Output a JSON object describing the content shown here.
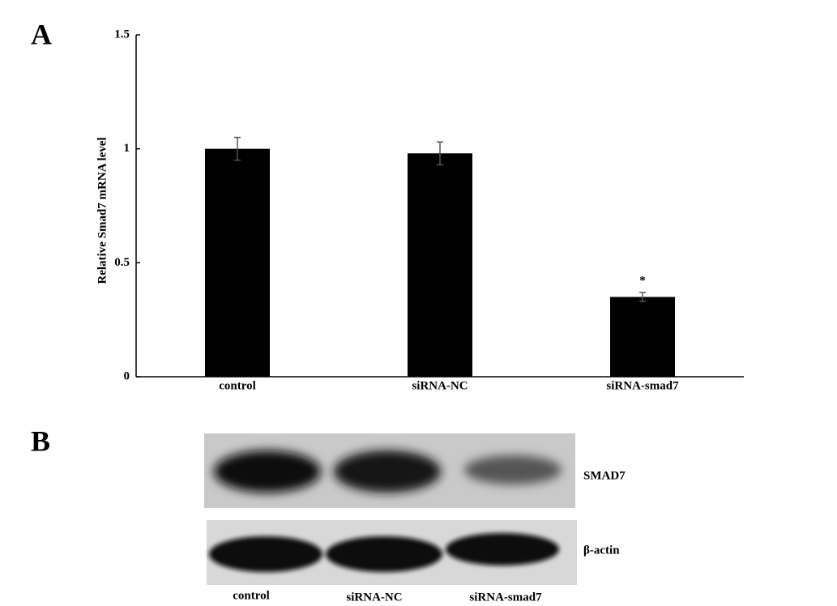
{
  "chart_data": {
    "type": "bar",
    "panel_label": "A",
    "ylabel": "Relative Smad7 mRNA level",
    "categories": [
      "control",
      "siRNA-NC",
      "siRNA-smad7"
    ],
    "values": [
      1.0,
      0.98,
      0.35
    ],
    "errors": [
      0.05,
      0.05,
      0.02
    ],
    "significance": [
      null,
      null,
      "*"
    ],
    "color": "#000000",
    "ylim": [
      0,
      1.5
    ],
    "yticks": [
      0,
      0.5,
      1,
      1.5
    ],
    "grid": false
  },
  "blot": {
    "panel_label": "B",
    "bands": [
      "SMAD7",
      "β-actin"
    ],
    "lanes": [
      "control",
      "siRNA-NC",
      "siRNA-smad7"
    ]
  }
}
